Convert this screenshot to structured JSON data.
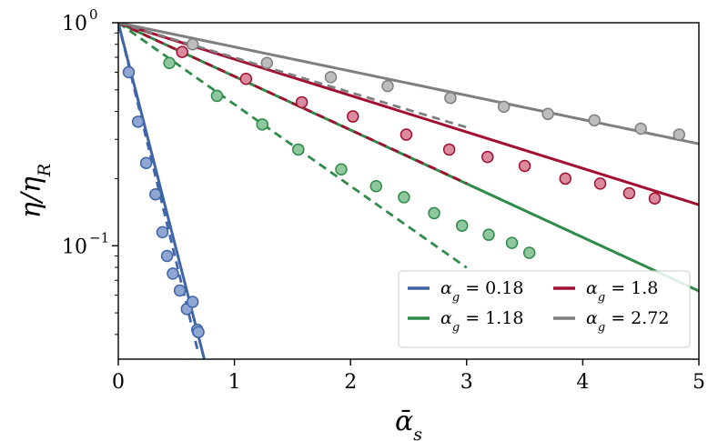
{
  "chart_data": {
    "type": "line",
    "xlabel": "ᾱ_s",
    "ylabel": "η/η_R",
    "xlim": [
      0,
      5
    ],
    "ylim": [
      0.031,
      1.0
    ],
    "yscale": "log",
    "x_ticks": [
      0,
      1,
      2,
      3,
      4,
      5
    ],
    "y_ticks": [
      {
        "value": 1.0,
        "label": "10",
        "exp": "0"
      },
      {
        "value": 0.1,
        "label": "10",
        "exp": "−1"
      }
    ],
    "grid": false,
    "legend_position": "bottom-right",
    "series": [
      {
        "name": "α_g = 0.18",
        "legend_greek": "α",
        "legend_sub": "g",
        "legend_value": " = 0.18",
        "color": "#3f64a8",
        "fill": "#8fa6d2",
        "points": [
          [
            0.09,
            0.6
          ],
          [
            0.17,
            0.36
          ],
          [
            0.24,
            0.235
          ],
          [
            0.32,
            0.17
          ],
          [
            0.38,
            0.115
          ],
          [
            0.42,
            0.09
          ],
          [
            0.47,
            0.075
          ],
          [
            0.53,
            0.063
          ],
          [
            0.59,
            0.052
          ],
          [
            0.64,
            0.056
          ],
          [
            0.68,
            0.042
          ],
          [
            0.69,
            0.041
          ]
        ],
        "solid_slope": 4.69,
        "dashed_slope": 4.95,
        "solid_xmax": 0.74,
        "dashed_xmax": 0.69
      },
      {
        "name": "α_g = 1.18",
        "legend_greek": "α",
        "legend_sub": "g",
        "legend_value": " = 1.18",
        "color": "#2e8b4a",
        "fill": "#8ec79c",
        "points": [
          [
            0.44,
            0.66
          ],
          [
            0.85,
            0.47
          ],
          [
            1.24,
            0.35
          ],
          [
            1.55,
            0.27
          ],
          [
            1.92,
            0.22
          ],
          [
            2.22,
            0.185
          ],
          [
            2.46,
            0.165
          ],
          [
            2.72,
            0.14
          ],
          [
            2.96,
            0.123
          ],
          [
            3.19,
            0.112
          ],
          [
            3.39,
            0.103
          ],
          [
            3.54,
            0.093
          ]
        ],
        "solid_slope": 0.554,
        "dashed_slope": 0.843,
        "solid_xmax": 5.0,
        "dashed_xmax": 3.0
      },
      {
        "name": "α_g = 1.8",
        "legend_greek": "α",
        "legend_sub": "g",
        "legend_value": " = 1.8",
        "color": "#a30f30",
        "fill": "#d98c9e",
        "points": [
          [
            0.55,
            0.74
          ],
          [
            1.1,
            0.56
          ],
          [
            1.58,
            0.44
          ],
          [
            2.02,
            0.38
          ],
          [
            2.48,
            0.315
          ],
          [
            2.85,
            0.27
          ],
          [
            3.18,
            0.25
          ],
          [
            3.5,
            0.228
          ],
          [
            3.85,
            0.2
          ],
          [
            4.15,
            0.19
          ],
          [
            4.4,
            0.172
          ],
          [
            4.62,
            0.163
          ]
        ],
        "solid_slope": 0.376,
        "dashed_slope": 0.553,
        "solid_xmax": 5.0,
        "dashed_xmax": 3.0
      },
      {
        "name": "α_g = 2.72",
        "legend_greek": "α",
        "legend_sub": "g",
        "legend_value": " = 2.72",
        "color": "#7f7f7f",
        "fill": "#bdbdbd",
        "points": [
          [
            0.64,
            0.8
          ],
          [
            1.28,
            0.66
          ],
          [
            1.83,
            0.57
          ],
          [
            2.32,
            0.52
          ],
          [
            2.86,
            0.46
          ],
          [
            3.32,
            0.42
          ],
          [
            3.7,
            0.39
          ],
          [
            4.1,
            0.365
          ],
          [
            4.5,
            0.335
          ],
          [
            4.83,
            0.315
          ]
        ],
        "solid_slope": 0.25,
        "dashed_slope": 0.36,
        "solid_xmax": 5.0,
        "dashed_xmax": 3.0
      }
    ]
  }
}
